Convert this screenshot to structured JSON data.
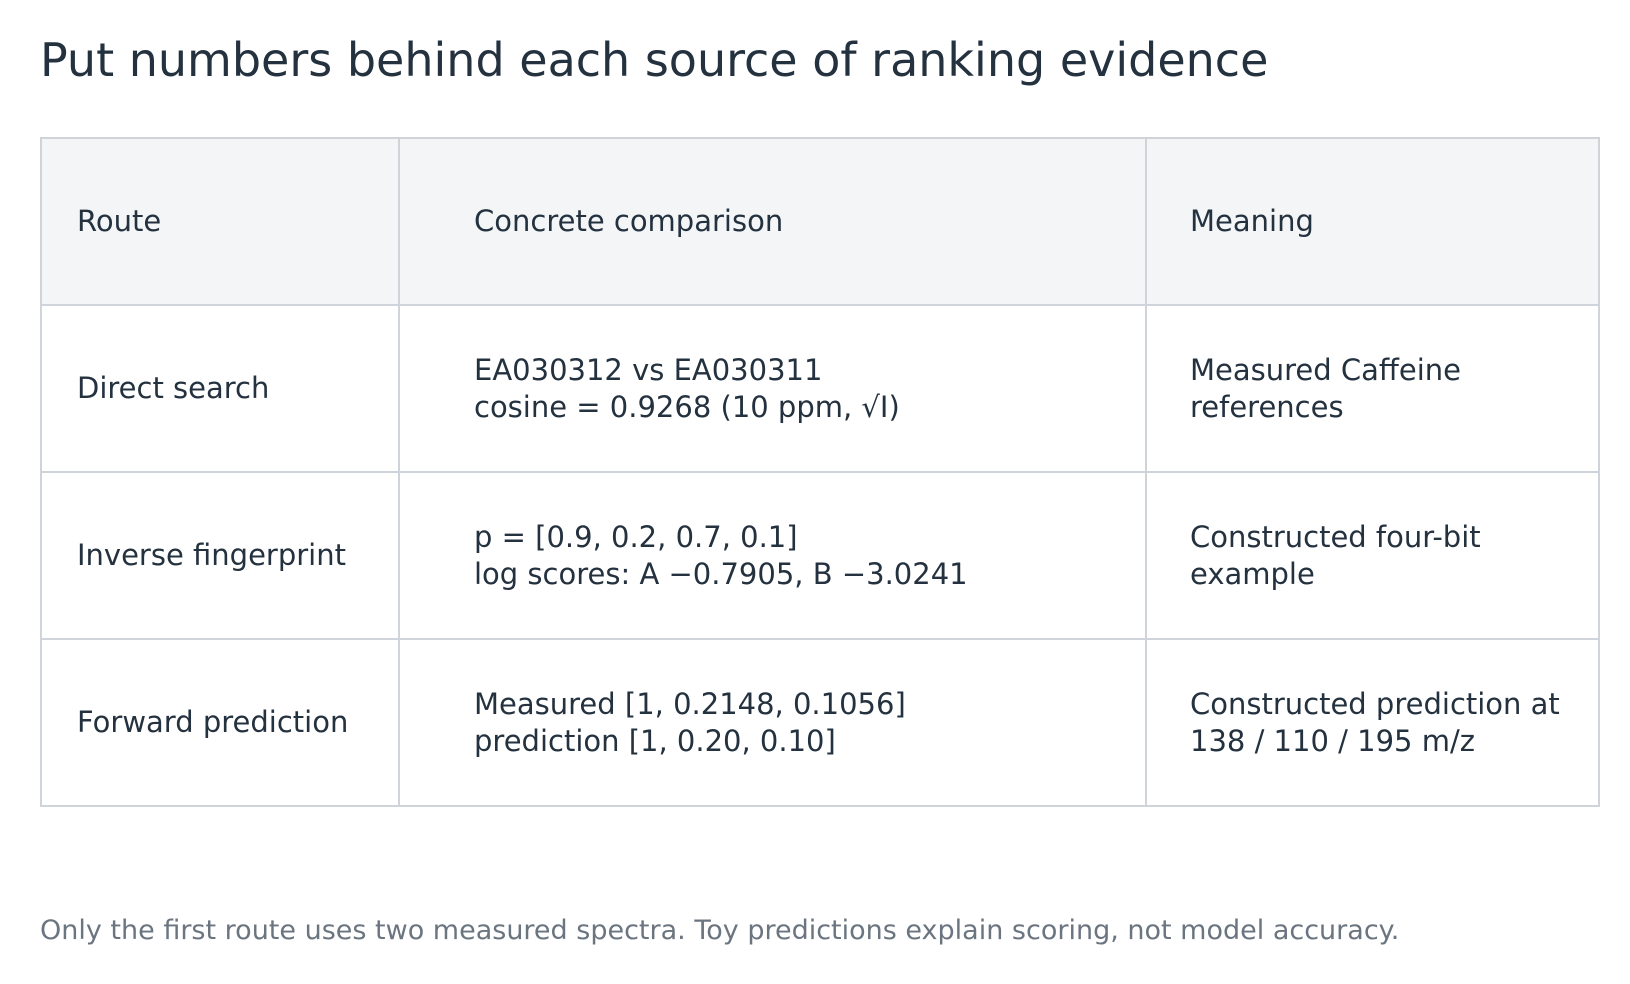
{
  "title": "Put numbers behind each source of ranking evidence",
  "table": {
    "headers": {
      "route": "Route",
      "comparison": "Concrete comparison",
      "meaning": "Meaning"
    },
    "rows": [
      {
        "route": "Direct search",
        "comparison": [
          "EA030312 vs EA030311",
          "cosine = 0.9268 (10 ppm, √I)"
        ],
        "meaning": [
          "Measured Caffeine",
          "references"
        ]
      },
      {
        "route": "Inverse fingerprint",
        "comparison": [
          "p = [0.9, 0.2, 0.7, 0.1]",
          "log scores: A −0.7905, B −3.0241"
        ],
        "meaning": [
          "Constructed four-bit",
          "example"
        ]
      },
      {
        "route": "Forward prediction",
        "comparison": [
          "Measured [1, 0.2148, 0.1056]",
          "prediction [1, 0.20, 0.10]"
        ],
        "meaning": [
          "Constructed prediction at",
          "138 / 110 / 195 m/z"
        ]
      }
    ]
  },
  "footnote": "Only the first route uses two measured spectra. Toy predictions explain scoring, not model accuracy.",
  "colors": {
    "text": "#24313f",
    "header_background": "#f3f5f7",
    "border": "#ced4da",
    "footnote": "#6b7580"
  }
}
